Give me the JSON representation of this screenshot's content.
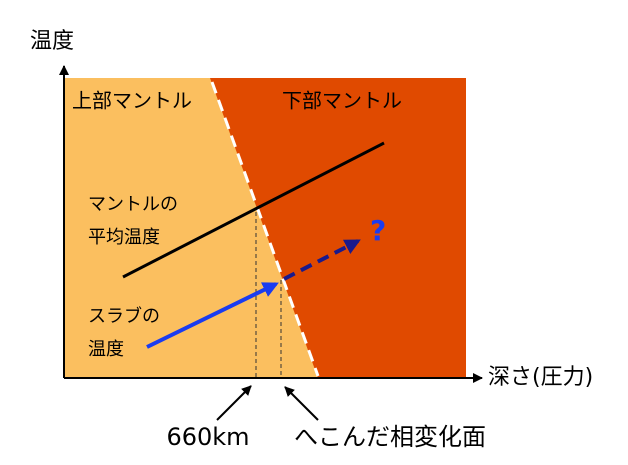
{
  "axes": {
    "y_label": "温度",
    "x_label": "深さ(圧力)"
  },
  "regions": {
    "upper": "上部マントル",
    "lower": "下部マントル"
  },
  "curves": {
    "mantle": [
      "マントルの",
      "平均温度"
    ],
    "slab": [
      "スラブの",
      "温度"
    ],
    "unknown": "?"
  },
  "annotations": {
    "depth": "660km",
    "boundary": "へこんだ相変化面"
  }
}
